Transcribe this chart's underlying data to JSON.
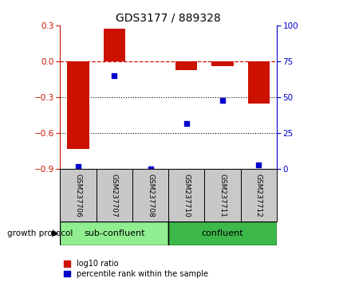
{
  "title": "GDS3177 / 889328",
  "samples": [
    "GSM237706",
    "GSM237707",
    "GSM237708",
    "GSM237710",
    "GSM237711",
    "GSM237712"
  ],
  "log10_ratio": [
    -0.73,
    0.27,
    0.0,
    -0.07,
    -0.04,
    -0.35
  ],
  "percentile_rank": [
    2,
    65,
    0,
    32,
    48,
    3
  ],
  "bar_color": "#CC1100",
  "dot_color": "#0000CC",
  "ylim_left": [
    -0.9,
    0.3
  ],
  "ylim_right": [
    0,
    100
  ],
  "yticks_left": [
    -0.9,
    -0.6,
    -0.3,
    0,
    0.3
  ],
  "yticks_right": [
    0,
    25,
    50,
    75,
    100
  ],
  "groups": [
    {
      "label": "sub-confluent",
      "color": "#90EE90"
    },
    {
      "label": "confluent",
      "color": "#3CB94A"
    }
  ],
  "group_label": "growth protocol",
  "legend_log10": "log10 ratio",
  "legend_pct": "percentile rank within the sample",
  "dotted_lines": [
    -0.3,
    -0.6
  ],
  "bg_color": "#FFFFFF",
  "plot_bg_color": "#FFFFFF",
  "tick_label_color_left": "#CC1100",
  "tick_label_color_right": "#0000CC",
  "sample_box_color": "#C8C8C8",
  "bar_width": 0.6
}
